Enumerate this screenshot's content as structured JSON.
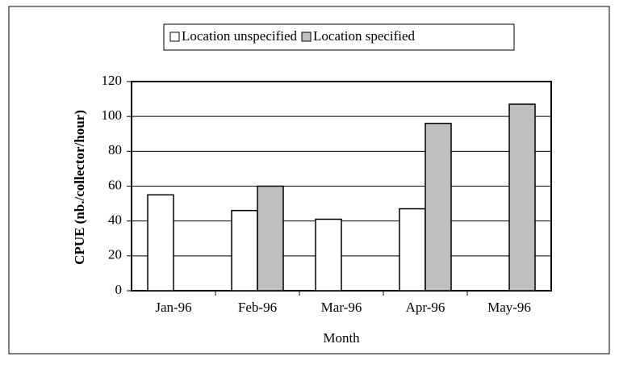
{
  "chart_data": {
    "type": "bar",
    "x_label": "Month",
    "y_label": "CPUE (nb./collector/hour)",
    "categories": [
      "Jan-96",
      "Feb-96",
      "Mar-96",
      "Apr-96",
      "May-96"
    ],
    "series": [
      {
        "name": "Location unspecified",
        "color": "#ffffff",
        "values": [
          55,
          46,
          41,
          47,
          null
        ]
      },
      {
        "name": "Location specified",
        "color": "#c0c0c0",
        "values": [
          null,
          60,
          null,
          96,
          107
        ]
      }
    ],
    "ylim": [
      0,
      120
    ],
    "yticks": [
      0,
      20,
      40,
      60,
      80,
      100,
      120
    ],
    "grid": true,
    "legend": "top"
  }
}
